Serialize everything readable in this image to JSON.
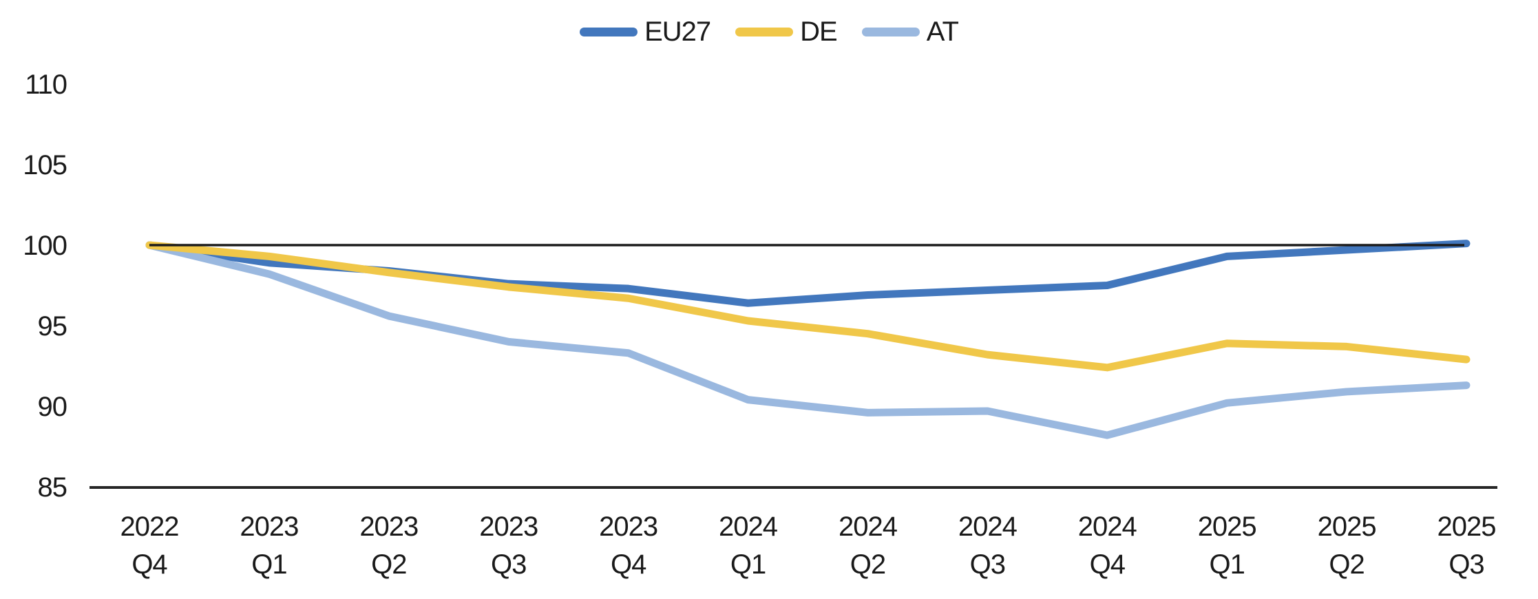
{
  "chart_data": {
    "type": "line",
    "title": "",
    "xlabel": "",
    "ylabel": "",
    "categories": [
      "2022 Q4",
      "2023 Q1",
      "2023 Q2",
      "2023 Q3",
      "2023 Q4",
      "2024 Q1",
      "2024 Q2",
      "2024 Q3",
      "2024 Q4",
      "2025 Q1",
      "2025 Q2",
      "2025 Q3"
    ],
    "series": [
      {
        "name": "EU27",
        "color": "#4277BD",
        "values": [
          100.0,
          98.9,
          98.4,
          97.6,
          97.3,
          96.4,
          96.9,
          97.2,
          97.5,
          99.3,
          99.7,
          100.1
        ]
      },
      {
        "name": "DE",
        "color": "#F0C749",
        "values": [
          100.0,
          99.3,
          98.3,
          97.4,
          96.7,
          95.3,
          94.5,
          93.2,
          92.4,
          93.9,
          93.7,
          92.9
        ]
      },
      {
        "name": "AT",
        "color": "#9AB8DF",
        "values": [
          100.0,
          98.2,
          95.6,
          94.0,
          93.3,
          90.4,
          89.6,
          89.7,
          88.2,
          90.2,
          90.9,
          91.3
        ]
      }
    ],
    "ylim": [
      85,
      110
    ],
    "yticks": [
      85,
      90,
      95,
      100,
      105,
      110
    ],
    "reference_line_y": 100,
    "grid": "off",
    "legend_position": "top-center"
  },
  "colors": {
    "axis_line": "#262626",
    "reference_line": "#1c1c1c",
    "label_text": "#1a1a1a",
    "background": "#ffffff"
  }
}
